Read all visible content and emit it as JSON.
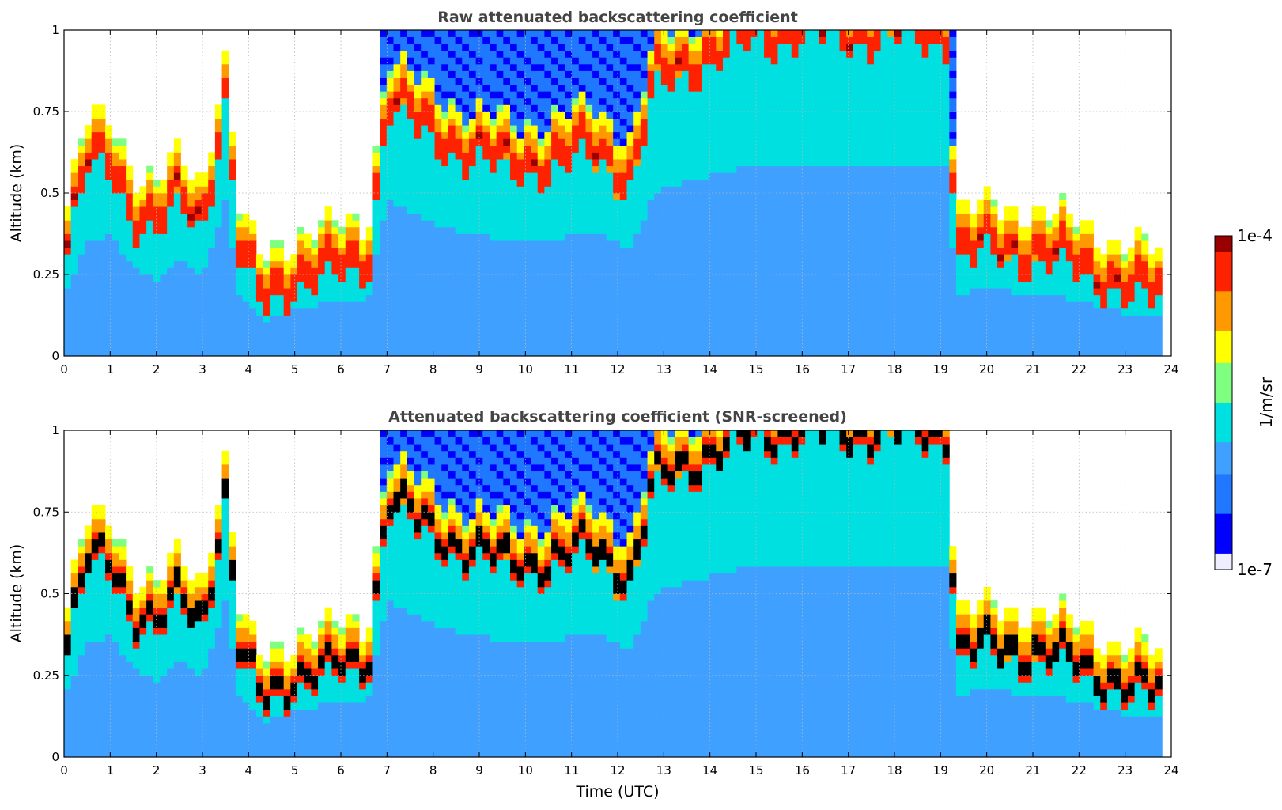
{
  "chart_data": [
    {
      "type": "heatmap",
      "title": "Raw attenuated backscattering coefficient",
      "xlabel": "",
      "ylabel": "Altitude (km)",
      "xlim": [
        0,
        24
      ],
      "ylim": [
        0,
        1
      ],
      "xticks": [
        "0",
        "1",
        "2",
        "3",
        "4",
        "5",
        "6",
        "7",
        "8",
        "9",
        "10",
        "11",
        "12",
        "13",
        "14",
        "15",
        "16",
        "17",
        "18",
        "19",
        "20",
        "21",
        "22",
        "23",
        "24"
      ],
      "yticks": [
        "0",
        "0.25",
        "0.5",
        "0.75",
        "1"
      ],
      "grid": true,
      "layer_top_km": [
        [
          0.0,
          0.3
        ],
        [
          0.5,
          0.6
        ],
        [
          1.0,
          0.62
        ],
        [
          1.5,
          0.45
        ],
        [
          2.0,
          0.4
        ],
        [
          2.5,
          0.5
        ],
        [
          3.0,
          0.42
        ],
        [
          3.5,
          0.8
        ],
        [
          3.8,
          0.32
        ],
        [
          4.3,
          0.18
        ],
        [
          5.0,
          0.25
        ],
        [
          6.0,
          0.28
        ],
        [
          6.6,
          0.3
        ],
        [
          7.0,
          0.8
        ],
        [
          7.7,
          0.72
        ],
        [
          8.5,
          0.65
        ],
        [
          9.5,
          0.6
        ],
        [
          10.5,
          0.6
        ],
        [
          11.5,
          0.65
        ],
        [
          12.3,
          0.55
        ],
        [
          12.8,
          0.85
        ],
        [
          13.5,
          0.9
        ],
        [
          14.3,
          0.95
        ],
        [
          15.0,
          1.0
        ],
        [
          19.2,
          1.0
        ],
        [
          19.3,
          0.33
        ],
        [
          20.0,
          0.34
        ],
        [
          21.0,
          0.33
        ],
        [
          22.0,
          0.29
        ],
        [
          23.0,
          0.22
        ],
        [
          23.8,
          0.2
        ]
      ],
      "colorbar": {
        "label": "1/m/sr",
        "min_label": "1e-7",
        "max_label": "1e-4",
        "scale": "log"
      }
    },
    {
      "type": "heatmap",
      "title": "Attenuated backscattering coefficient (SNR-screened)",
      "xlabel": "Time (UTC)",
      "ylabel": "Altitude (km)",
      "xlim": [
        0,
        24
      ],
      "ylim": [
        0,
        1
      ],
      "xticks": [
        "0",
        "1",
        "2",
        "3",
        "4",
        "5",
        "6",
        "7",
        "8",
        "9",
        "10",
        "11",
        "12",
        "13",
        "14",
        "15",
        "16",
        "17",
        "18",
        "19",
        "20",
        "21",
        "22",
        "23",
        "24"
      ],
      "yticks": [
        "0",
        "0.25",
        "0.5",
        "0.75",
        "1"
      ],
      "grid": true,
      "layer_top_km": [
        [
          0.0,
          0.3
        ],
        [
          0.5,
          0.6
        ],
        [
          1.0,
          0.62
        ],
        [
          1.5,
          0.45
        ],
        [
          2.0,
          0.4
        ],
        [
          2.5,
          0.5
        ],
        [
          3.0,
          0.42
        ],
        [
          3.5,
          0.8
        ],
        [
          3.8,
          0.32
        ],
        [
          4.3,
          0.18
        ],
        [
          5.0,
          0.25
        ],
        [
          6.0,
          0.28
        ],
        [
          6.6,
          0.3
        ],
        [
          7.0,
          0.8
        ],
        [
          7.7,
          0.72
        ],
        [
          8.5,
          0.65
        ],
        [
          9.5,
          0.6
        ],
        [
          10.5,
          0.6
        ],
        [
          11.5,
          0.65
        ],
        [
          12.3,
          0.55
        ],
        [
          12.8,
          0.85
        ],
        [
          13.5,
          0.9
        ],
        [
          14.3,
          0.95
        ],
        [
          15.0,
          1.0
        ],
        [
          19.2,
          1.0
        ],
        [
          19.3,
          0.33
        ],
        [
          20.0,
          0.34
        ],
        [
          21.0,
          0.33
        ],
        [
          22.0,
          0.29
        ],
        [
          23.0,
          0.22
        ],
        [
          23.8,
          0.2
        ]
      ],
      "colorbar": {
        "label": "1/m/sr",
        "min_label": "1e-7",
        "max_label": "1e-4",
        "scale": "log"
      }
    }
  ],
  "colormap": [
    "#eeeeff",
    "#0000ff",
    "#1f78ff",
    "#3fa0ff",
    "#00e0e0",
    "#7fff7f",
    "#ffff00",
    "#ff9900",
    "#ff2200",
    "#990000"
  ],
  "screened_peak_color": "#000000"
}
